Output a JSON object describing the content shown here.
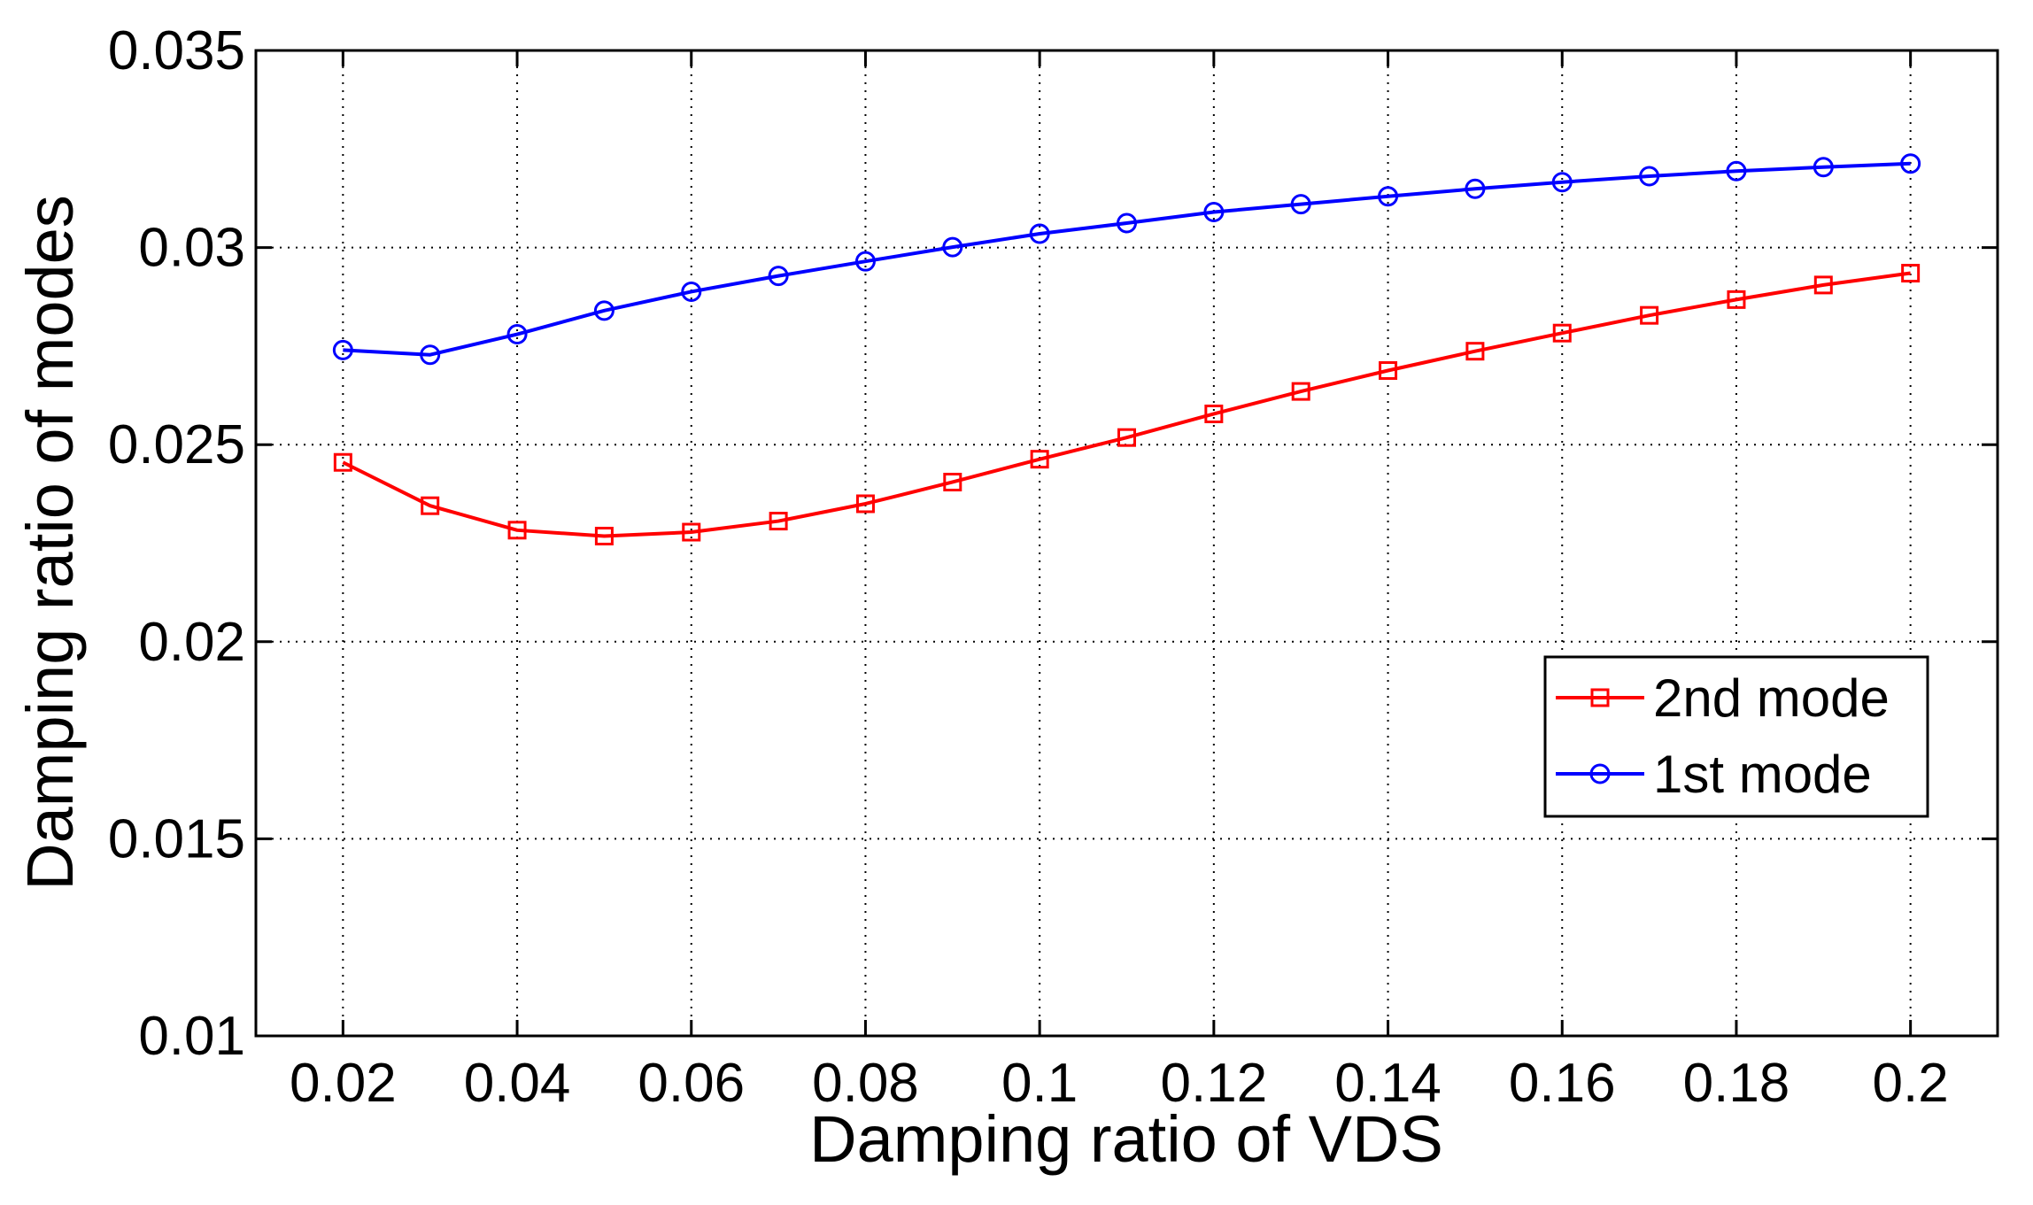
{
  "chart_data": {
    "type": "line",
    "title": "",
    "xlabel": "Damping ratio of VDS",
    "ylabel": "Damping ratio of modes",
    "xlim": [
      0.01,
      0.21
    ],
    "ylim": [
      0.01,
      0.035
    ],
    "grid": true,
    "legend_position": "right-center",
    "x": [
      0.02,
      0.03,
      0.04,
      0.05,
      0.06,
      0.07,
      0.08,
      0.09,
      0.1,
      0.11,
      0.12,
      0.13,
      0.14,
      0.15,
      0.16,
      0.17,
      0.18,
      0.19,
      0.2
    ],
    "x_ticks": [
      "0.02",
      "0.04",
      "0.06",
      "0.08",
      "0.1",
      "0.12",
      "0.14",
      "0.16",
      "0.18",
      "0.2"
    ],
    "x_tick_values": [
      0.02,
      0.04,
      0.06,
      0.08,
      0.1,
      0.12,
      0.14,
      0.16,
      0.18,
      0.2
    ],
    "y_ticks": [
      "0.01",
      "0.015",
      "0.02",
      "0.025",
      "0.03",
      "0.035"
    ],
    "y_tick_values": [
      0.01,
      0.015,
      0.02,
      0.025,
      0.03,
      0.035
    ],
    "series": [
      {
        "name": "2nd mode",
        "color": "#ff0000",
        "marker": "square",
        "values": [
          0.02455,
          0.02345,
          0.02283,
          0.02268,
          0.02278,
          0.02306,
          0.0235,
          0.02405,
          0.02463,
          0.02518,
          0.02578,
          0.02635,
          0.02688,
          0.02737,
          0.02783,
          0.02828,
          0.02868,
          0.02905,
          0.02935
        ]
      },
      {
        "name": "1st mode",
        "color": "#0000ff",
        "marker": "circle",
        "values": [
          0.0274,
          0.02728,
          0.0278,
          0.0284,
          0.02888,
          0.02928,
          0.02965,
          0.03001,
          0.03035,
          0.03062,
          0.0309,
          0.0311,
          0.0313,
          0.03149,
          0.03166,
          0.03181,
          0.03194,
          0.03204,
          0.03213
        ]
      }
    ]
  }
}
